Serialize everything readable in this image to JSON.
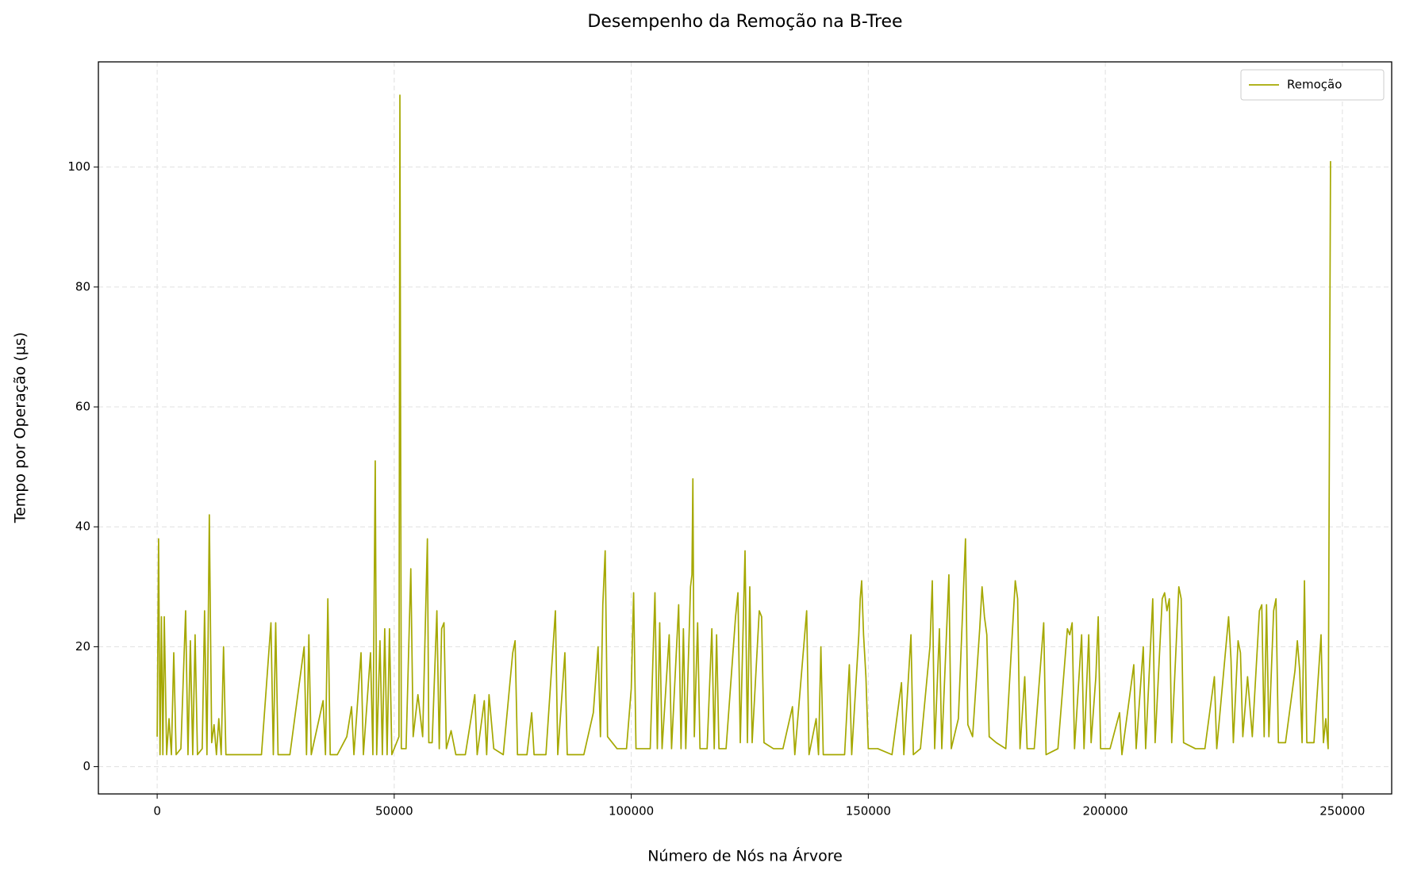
{
  "chart_data": {
    "type": "line",
    "title": "Desempenho da Remoção na B-Tree",
    "xlabel": "Número de Nós na Árvore",
    "ylabel": "Tempo por Operação (µs)",
    "x": [
      0,
      300,
      600,
      900,
      1200,
      1500,
      2000,
      2500,
      3000,
      3500,
      4000,
      5000,
      6000,
      6500,
      7000,
      7500,
      8000,
      8500,
      9500,
      10000,
      10500,
      11000,
      11500,
      12000,
      12500,
      13000,
      13500,
      14000,
      14500,
      16000,
      18000,
      20000,
      22000,
      24000,
      24500,
      25000,
      25500,
      28000,
      31000,
      31500,
      32000,
      32500,
      35000,
      35500,
      36000,
      36500,
      38000,
      40000,
      41000,
      41500,
      43000,
      43500,
      45000,
      45500,
      46000,
      46300,
      47000,
      47500,
      48000,
      48500,
      49000,
      49500,
      51000,
      51200,
      51500,
      52500,
      53500,
      54000,
      55000,
      56000,
      57000,
      57300,
      58000,
      59000,
      59500,
      60000,
      60500,
      61000,
      62000,
      63000,
      65000,
      67000,
      67500,
      69000,
      69500,
      70000,
      71000,
      73000,
      75000,
      75500,
      76000,
      78000,
      79000,
      79500,
      82000,
      84000,
      84500,
      86000,
      86500,
      90000,
      92000,
      93000,
      93500,
      94000,
      94500,
      95000,
      97000,
      99000,
      100000,
      100500,
      101000,
      104000,
      105000,
      105500,
      106000,
      106500,
      108000,
      108500,
      110000,
      110500,
      111000,
      111500,
      112500,
      112800,
      113000,
      113300,
      114000,
      114500,
      116000,
      117000,
      117500,
      118000,
      118500,
      120000,
      122000,
      122500,
      123000,
      124000,
      124500,
      125000,
      125500,
      127000,
      127500,
      128000,
      130000,
      132000,
      134000,
      134500,
      137000,
      137500,
      139000,
      139500,
      140000,
      140500,
      145000,
      146000,
      146500,
      148000,
      148300,
      148600,
      149000,
      149500,
      150000,
      152000,
      155000,
      157000,
      157500,
      159000,
      159500,
      161000,
      163000,
      163500,
      164000,
      165000,
      165500,
      167000,
      167500,
      169000,
      170500,
      171000,
      172000,
      173500,
      174000,
      174500,
      175000,
      175500,
      177000,
      179000,
      181000,
      181500,
      182000,
      183000,
      183500,
      185000,
      187000,
      187500,
      190000,
      192000,
      192500,
      193000,
      193500,
      195000,
      195500,
      196500,
      197000,
      198000,
      198500,
      199000,
      201000,
      203000,
      203500,
      206000,
      206500,
      208000,
      208500,
      210000,
      210500,
      212000,
      212500,
      213000,
      213500,
      214000,
      215500,
      216000,
      216500,
      219000,
      221000,
      223000,
      223500,
      226000,
      226500,
      227000,
      228000,
      228500,
      229000,
      230000,
      231000,
      232500,
      233000,
      233500,
      234000,
      234500,
      235500,
      236000,
      236500,
      238000,
      240000,
      240500,
      241000,
      241500,
      242000,
      242500,
      244000,
      245500,
      246000,
      246500,
      247000,
      247500
    ],
    "series": [
      {
        "name": "Remoção",
        "color": "#a5a800",
        "values": [
          5,
          38,
          2,
          25,
          2,
          25,
          2,
          8,
          2,
          19,
          2,
          3,
          26,
          2,
          21,
          2,
          22,
          2,
          3,
          26,
          2,
          42,
          4,
          7,
          2,
          8,
          2,
          20,
          2,
          2,
          2,
          2,
          2,
          24,
          2,
          24,
          2,
          2,
          20,
          2,
          22,
          2,
          11,
          2,
          28,
          2,
          2,
          5,
          10,
          2,
          19,
          2,
          19,
          2,
          51,
          2,
          21,
          2,
          23,
          2,
          23,
          2,
          5,
          112,
          3,
          3,
          33,
          5,
          12,
          5,
          38,
          4,
          4,
          26,
          3,
          23,
          24,
          3,
          6,
          2,
          2,
          12,
          2,
          11,
          2,
          12,
          3,
          2,
          19,
          21,
          2,
          2,
          9,
          2,
          2,
          26,
          2,
          19,
          2,
          2,
          9,
          20,
          5,
          27,
          36,
          5,
          3,
          3,
          13,
          29,
          3,
          3,
          29,
          3,
          24,
          3,
          22,
          3,
          27,
          3,
          23,
          3,
          30,
          32,
          48,
          5,
          24,
          3,
          3,
          23,
          3,
          22,
          3,
          3,
          25,
          29,
          4,
          36,
          4,
          30,
          4,
          26,
          25,
          4,
          3,
          3,
          10,
          2,
          26,
          2,
          8,
          2,
          20,
          2,
          2,
          17,
          2,
          22,
          28,
          31,
          22,
          15,
          3,
          3,
          2,
          14,
          2,
          22,
          2,
          3,
          20,
          31,
          3,
          23,
          3,
          32,
          3,
          8,
          38,
          7,
          5,
          23,
          30,
          25,
          22,
          5,
          4,
          3,
          31,
          28,
          3,
          15,
          3,
          3,
          24,
          2,
          3,
          23,
          22,
          24,
          3,
          22,
          3,
          22,
          4,
          15,
          25,
          3,
          3,
          9,
          2,
          17,
          3,
          20,
          3,
          28,
          4,
          28,
          29,
          26,
          28,
          4,
          30,
          28,
          4,
          3,
          3,
          15,
          3,
          25,
          18,
          4,
          21,
          19,
          5,
          15,
          5,
          26,
          27,
          5,
          27,
          5,
          26,
          28,
          4,
          4,
          16,
          21,
          16,
          4,
          31,
          4,
          4,
          22,
          4,
          8,
          3,
          101
        ]
      }
    ],
    "xlim": [
      -12400,
      260400
    ],
    "ylim": [
      -4.55,
      117.55
    ],
    "xticks": [
      0,
      50000,
      100000,
      150000,
      200000,
      250000
    ],
    "yticks": [
      0,
      20,
      40,
      60,
      80,
      100
    ],
    "grid": true,
    "legend": "upper right"
  }
}
